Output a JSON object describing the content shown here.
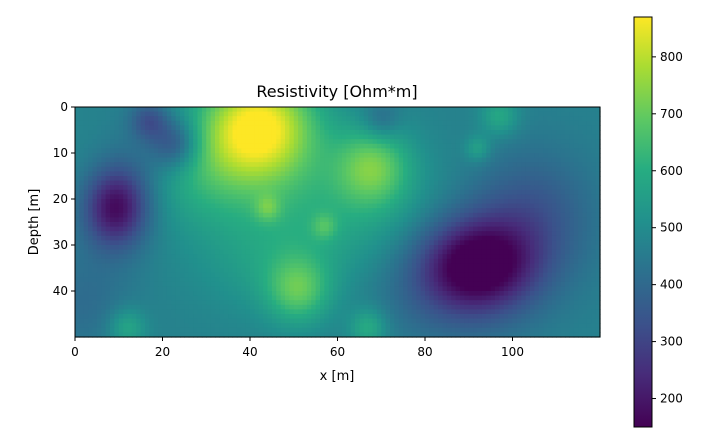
{
  "chart_data": {
    "type": "heatmap",
    "title": "Resistivity [Ohm*m]",
    "xlabel": "x [m]",
    "ylabel": "Depth [m]",
    "xlim": [
      0,
      120
    ],
    "ylim": [
      50,
      0
    ],
    "x_ticks": [
      0,
      20,
      40,
      60,
      80,
      100
    ],
    "y_ticks": [
      0,
      10,
      20,
      30,
      40
    ],
    "grid": false,
    "colormap": "viridis",
    "colorbar": {
      "range": [
        150,
        870
      ],
      "ticks": [
        200,
        300,
        400,
        500,
        600,
        700,
        800
      ],
      "placement": "right"
    },
    "field": {
      "background": 470,
      "anomalies": [
        {
          "x": 42,
          "y": 4,
          "sx": 9,
          "sy": 8,
          "amp": 390
        },
        {
          "x": 30,
          "y": 14,
          "sx": 14,
          "sy": 9,
          "amp": 130
        },
        {
          "x": 68,
          "y": 13,
          "sx": 6,
          "sy": 6,
          "amp": 210
        },
        {
          "x": 60,
          "y": 22,
          "sx": 16,
          "sy": 10,
          "amp": 90
        },
        {
          "x": 51,
          "y": 40,
          "sx": 5,
          "sy": 5,
          "amp": 180
        },
        {
          "x": 45,
          "y": 34,
          "sx": 12,
          "sy": 8,
          "amp": 70
        },
        {
          "x": 12,
          "y": 48,
          "sx": 3,
          "sy": 3,
          "amp": 120
        },
        {
          "x": 67,
          "y": 48,
          "sx": 3,
          "sy": 3,
          "amp": 130
        },
        {
          "x": 97,
          "y": 2,
          "sx": 3,
          "sy": 3,
          "amp": 120
        },
        {
          "x": 92,
          "y": 9,
          "sx": 2,
          "sy": 2,
          "amp": 100
        },
        {
          "x": 44,
          "y": 22,
          "sx": 2,
          "sy": 2,
          "amp": 100
        },
        {
          "x": 57,
          "y": 26,
          "sx": 2,
          "sy": 2,
          "amp": 90
        },
        {
          "x": 9,
          "y": 22,
          "sx": 5,
          "sy": 6,
          "amp": -280
        },
        {
          "x": 23,
          "y": 8,
          "sx": 4,
          "sy": 4,
          "amp": -190
        },
        {
          "x": 17,
          "y": 3,
          "sx": 3,
          "sy": 3,
          "amp": -140
        },
        {
          "x": 14,
          "y": 15,
          "sx": 6,
          "sy": 9,
          "amp": -90
        },
        {
          "x": 92,
          "y": 34,
          "sx": 9,
          "sy": 7,
          "amp": -320
        },
        {
          "x": 104,
          "y": 24,
          "sx": 10,
          "sy": 10,
          "amp": -130
        },
        {
          "x": 86,
          "y": 40,
          "sx": 12,
          "sy": 8,
          "amp": -90
        },
        {
          "x": 70,
          "y": 3,
          "sx": 3,
          "sy": 3,
          "amp": -90
        },
        {
          "x": 2,
          "y": 42,
          "sx": 8,
          "sy": 8,
          "amp": -60
        }
      ]
    }
  }
}
